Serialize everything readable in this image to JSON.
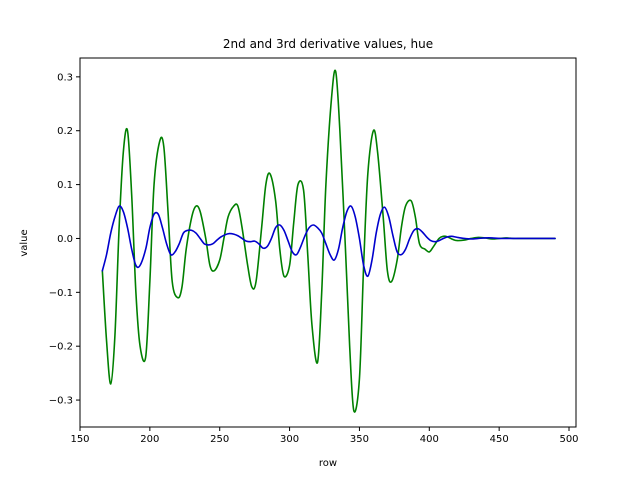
{
  "chart_data": {
    "type": "line",
    "title": "2nd and 3rd derivative values, hue",
    "xlabel": "row",
    "ylabel": "value",
    "xlim": [
      150,
      505
    ],
    "ylim": [
      -0.35,
      0.335
    ],
    "x_ticks": [
      150,
      200,
      250,
      300,
      350,
      400,
      450,
      500
    ],
    "x_tick_labels": [
      "150",
      "200",
      "250",
      "300",
      "350",
      "400",
      "450",
      "500"
    ],
    "y_ticks": [
      -0.3,
      -0.2,
      -0.1,
      0.0,
      0.1,
      0.2,
      0.3
    ],
    "y_tick_labels": [
      "−0.3",
      "−0.2",
      "−0.1",
      "0.0",
      "0.1",
      "0.2",
      "0.3"
    ],
    "grid": false,
    "legend": false,
    "series": [
      {
        "color": "#008000",
        "x": [
          166,
          169,
          172,
          175,
          178,
          181,
          184,
          187,
          190,
          193,
          197,
          200,
          203,
          207,
          210,
          213,
          216,
          220,
          223,
          226,
          230,
          233,
          236,
          240,
          243,
          246,
          250,
          253,
          256,
          260,
          263,
          266,
          270,
          273,
          276,
          280,
          283,
          286,
          290,
          293,
          296,
          300,
          303,
          306,
          310,
          313,
          316,
          320,
          323,
          326,
          330,
          333,
          336,
          340,
          343,
          346,
          350,
          353,
          356,
          360,
          363,
          367,
          370,
          373,
          377,
          380,
          383,
          387,
          390,
          393,
          397,
          400,
          403,
          407,
          410,
          413,
          417,
          420,
          425,
          430,
          435,
          440,
          445,
          450,
          455,
          460,
          465,
          470,
          475,
          480,
          485,
          490
        ],
        "y": [
          -0.06,
          -0.19,
          -0.27,
          -0.18,
          0.02,
          0.16,
          0.2,
          0.08,
          -0.1,
          -0.2,
          -0.22,
          -0.08,
          0.1,
          0.18,
          0.17,
          0.05,
          -0.08,
          -0.11,
          -0.09,
          -0.02,
          0.04,
          0.06,
          0.05,
          0.0,
          -0.05,
          -0.06,
          -0.04,
          0.0,
          0.04,
          0.06,
          0.06,
          0.02,
          -0.05,
          -0.09,
          -0.08,
          0.02,
          0.1,
          0.12,
          0.07,
          -0.02,
          -0.07,
          -0.05,
          0.03,
          0.1,
          0.09,
          -0.03,
          -0.16,
          -0.23,
          -0.1,
          0.1,
          0.26,
          0.31,
          0.2,
          -0.02,
          -0.2,
          -0.32,
          -0.26,
          -0.05,
          0.12,
          0.2,
          0.16,
          0.04,
          -0.06,
          -0.08,
          -0.04,
          0.02,
          0.06,
          0.07,
          0.04,
          -0.01,
          -0.02,
          -0.025,
          -0.015,
          0.0,
          0.004,
          0.003,
          -0.002,
          -0.004,
          -0.003,
          0.0,
          0.002,
          0.001,
          -0.001,
          0.0,
          0.001,
          0.0,
          0.0,
          0.0,
          0.0,
          0.0,
          0.0,
          0.0
        ]
      },
      {
        "color": "#0000cd",
        "x": [
          166,
          169,
          172,
          175,
          178,
          181,
          184,
          187,
          190,
          193,
          197,
          200,
          203,
          206,
          209,
          212,
          215,
          218,
          221,
          224,
          227,
          230,
          233,
          236,
          239,
          242,
          245,
          248,
          251,
          254,
          257,
          260,
          263,
          266,
          269,
          272,
          275,
          278,
          281,
          284,
          287,
          290,
          293,
          296,
          299,
          302,
          305,
          308,
          311,
          314,
          317,
          320,
          323,
          326,
          329,
          332,
          335,
          338,
          341,
          344,
          347,
          350,
          353,
          356,
          359,
          362,
          365,
          368,
          371,
          374,
          377,
          380,
          383,
          386,
          389,
          392,
          395,
          398,
          401,
          404,
          407,
          410,
          413,
          416,
          420,
          425,
          430,
          435,
          440,
          445,
          450,
          455,
          460,
          465,
          470,
          475,
          480,
          485,
          490
        ],
        "y": [
          -0.06,
          -0.03,
          0.01,
          0.04,
          0.06,
          0.05,
          0.02,
          -0.02,
          -0.05,
          -0.05,
          -0.02,
          0.02,
          0.045,
          0.045,
          0.02,
          -0.01,
          -0.03,
          -0.025,
          -0.01,
          0.01,
          0.015,
          0.015,
          0.01,
          0.0,
          -0.01,
          -0.012,
          -0.01,
          -0.003,
          0.003,
          0.007,
          0.009,
          0.008,
          0.005,
          0.0,
          -0.005,
          -0.006,
          -0.005,
          -0.01,
          -0.018,
          -0.015,
          0.0,
          0.02,
          0.025,
          0.015,
          -0.005,
          -0.025,
          -0.03,
          -0.015,
          0.005,
          0.02,
          0.025,
          0.02,
          0.01,
          -0.01,
          -0.03,
          -0.04,
          -0.02,
          0.02,
          0.05,
          0.06,
          0.04,
          0.0,
          -0.05,
          -0.07,
          -0.04,
          0.01,
          0.045,
          0.058,
          0.04,
          0.005,
          -0.025,
          -0.03,
          -0.02,
          0.0,
          0.015,
          0.018,
          0.012,
          0.003,
          -0.004,
          -0.006,
          -0.004,
          0.0,
          0.003,
          0.004,
          0.002,
          0.0,
          -0.001,
          0.0,
          0.001,
          0.001,
          0.0,
          0.0,
          0.0,
          0.0,
          0.0,
          0.0,
          0.0,
          0.0,
          0.0
        ]
      }
    ]
  }
}
